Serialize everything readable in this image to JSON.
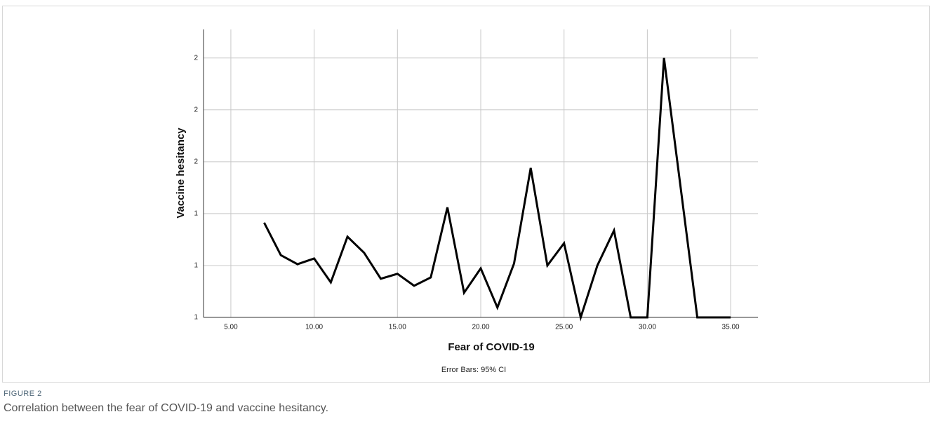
{
  "chart_data": {
    "type": "line",
    "xlabel": "Fear of COVID-19",
    "ylabel": "Vaccine hesitancy",
    "note": "Error Bars: 95% CI",
    "x": [
      7,
      8,
      9,
      10,
      11,
      12,
      13,
      14,
      15,
      16,
      17,
      18,
      19,
      20,
      21,
      22,
      23,
      24,
      25,
      26,
      27,
      28,
      29,
      30,
      31,
      32,
      33,
      34,
      35
    ],
    "values": [
      1.365,
      1.24,
      1.205,
      1.227,
      1.135,
      1.311,
      1.249,
      1.149,
      1.168,
      1.122,
      1.154,
      1.424,
      1.095,
      1.189,
      1.038,
      1.208,
      1.576,
      1.2,
      1.286,
      1.0,
      1.2,
      1.335,
      1.0,
      1.0,
      2.0,
      1.5,
      1.0,
      1.0,
      1.0
    ],
    "color": "#000000",
    "xlim": [
      3.36,
      36.64
    ],
    "xticks": [
      {
        "value": 5,
        "label": "5.00"
      },
      {
        "value": 10,
        "label": "10.00"
      },
      {
        "value": 15,
        "label": "15.00"
      },
      {
        "value": 20,
        "label": "20.00"
      },
      {
        "value": 25,
        "label": "25.00"
      },
      {
        "value": 30,
        "label": "30.00"
      },
      {
        "value": 35,
        "label": "35.00"
      }
    ],
    "ylim": [
      1,
      2.11
    ],
    "yticks": [
      1,
      {
        "value": 1.2,
        "label": "1"
      },
      {
        "value": 1.4,
        "label": "1"
      },
      {
        "value": 1.6,
        "label": "2"
      },
      {
        "value": 1.8,
        "label": "2"
      },
      {
        "value": 2.0,
        "label": "2"
      }
    ],
    "grid": true
  },
  "figure": {
    "label": "FIGURE 2",
    "caption": "Correlation between the fear of COVID-19 and vaccine hesitancy."
  }
}
